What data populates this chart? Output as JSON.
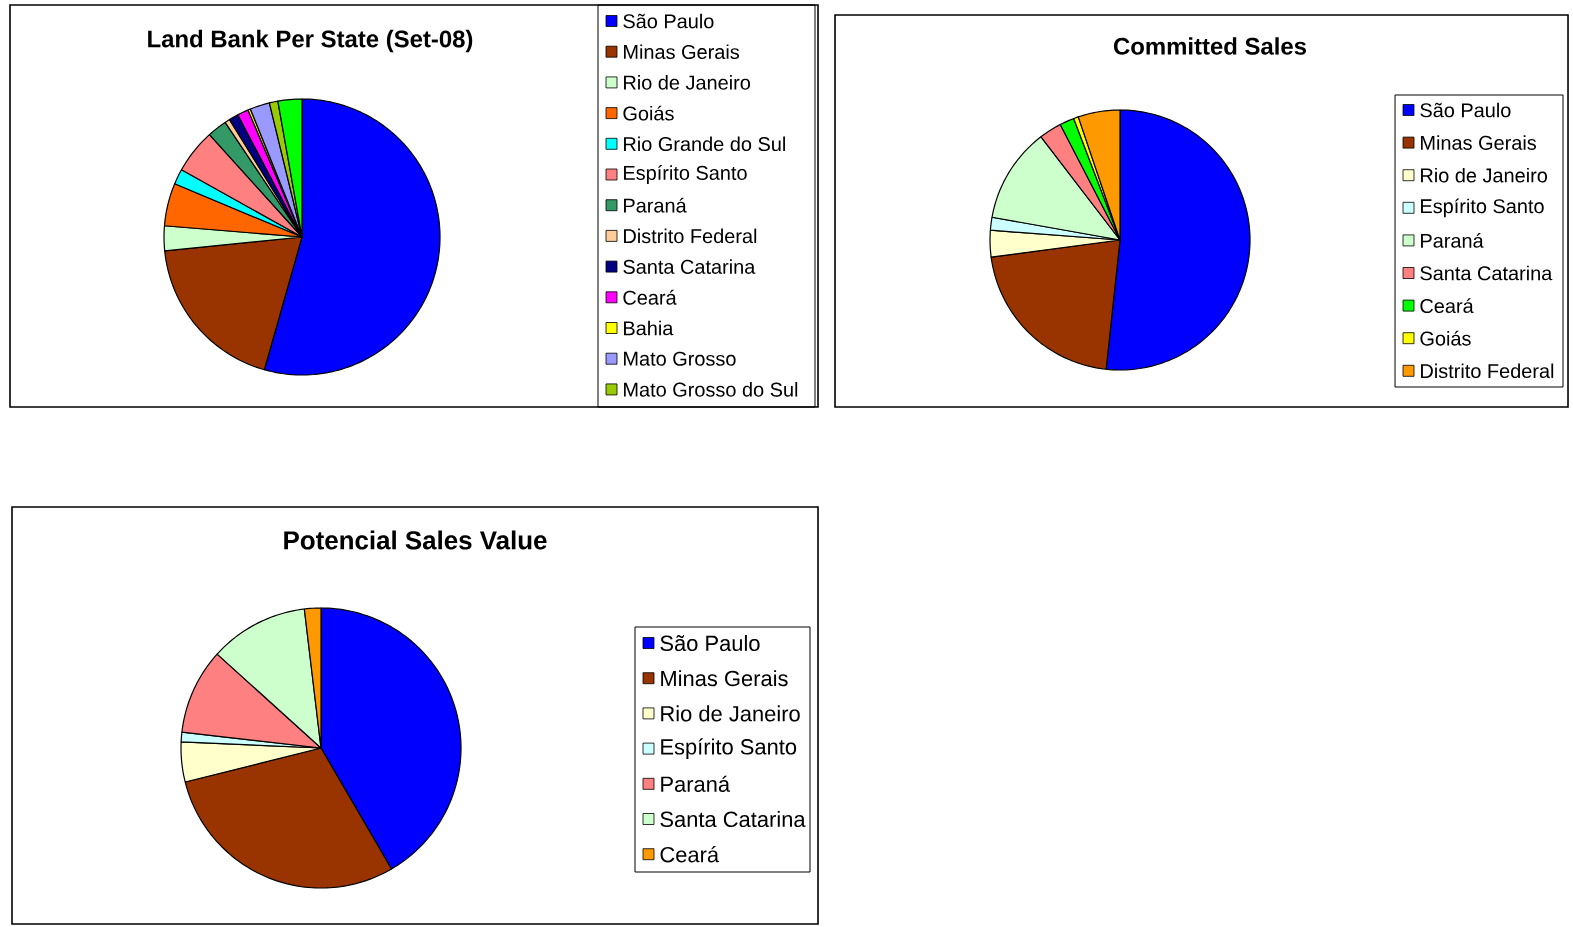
{
  "chart_data": [
    {
      "type": "pie",
      "title": "Land Bank Per State (Set-08)",
      "legend": "right",
      "categories": [
        "São Paulo",
        "Minas Gerais",
        "Rio de Janeiro",
        "Goiás",
        "Rio Grande do Sul",
        "Espírito Santo",
        "Paraná",
        "Distrito Federal",
        "Santa Catarina",
        "Ceará",
        "Bahia",
        "Mato Grosso",
        "Mato Grosso do Sul",
        null
      ],
      "values": [
        54.4,
        19.0,
        2.9,
        5.0,
        1.8,
        5.2,
        2.3,
        0.6,
        1.1,
        1.3,
        0.3,
        2.3,
        1.0,
        2.8
      ],
      "colors": [
        "#0000ff",
        "#993300",
        "#ccffcc",
        "#ff6600",
        "#00ffff",
        "#ff8080",
        "#339966",
        "#ffcc99",
        "#000080",
        "#ff00ff",
        "#ffff00",
        "#9999ff",
        "#99cc00",
        "#00ff00"
      ]
    },
    {
      "type": "pie",
      "title": "Committed Sales",
      "legend": "right",
      "categories": [
        "São Paulo",
        "Minas Gerais",
        "Rio de Janeiro",
        "Espírito Santo",
        "Paraná",
        "Santa Catarina",
        "Ceará",
        "Goiás",
        "Distrito Federal"
      ],
      "values": [
        51.7,
        21.2,
        3.3,
        1.6,
        11.8,
        2.8,
        1.8,
        0.6,
        5.2
      ],
      "colors": [
        "#0000ff",
        "#993300",
        "#ffffcc",
        "#ccffff",
        "#ccffcc",
        "#ff8080",
        "#00ff00",
        "#ffff00",
        "#ff9900"
      ]
    },
    {
      "type": "pie",
      "title": "Potencial Sales Value",
      "legend": "right",
      "categories": [
        "São Paulo",
        "Minas Gerais",
        "Rio de Janeiro",
        "Espírito Santo",
        "Paraná",
        "Santa Catarina",
        "Ceará"
      ],
      "values": [
        41.6,
        29.5,
        4.6,
        1.1,
        9.9,
        11.4,
        1.9
      ],
      "colors": [
        "#0000ff",
        "#993300",
        "#ffffcc",
        "#ccffff",
        "#ff8080",
        "#ccffcc",
        "#ff9900"
      ]
    }
  ]
}
